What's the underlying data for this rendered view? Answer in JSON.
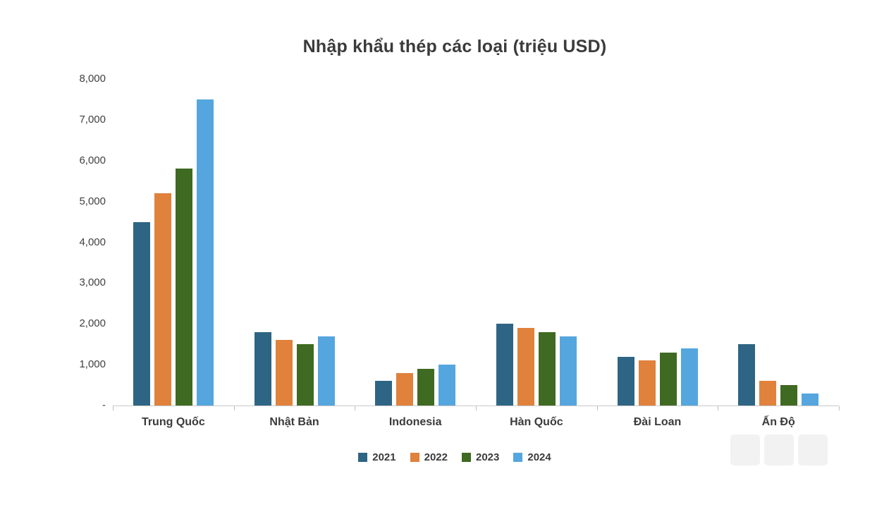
{
  "chart_data": {
    "type": "bar",
    "title": "Nhập khẩu thép các loại (triệu USD)",
    "categories": [
      "Trung Quốc",
      "Nhật Bản",
      "Indonesia",
      "Hàn Quốc",
      "Đài Loan",
      "Ấn Độ"
    ],
    "series": [
      {
        "name": "2021",
        "color": "#2E6584",
        "values": [
          4500,
          1800,
          600,
          2000,
          1200,
          1500
        ]
      },
      {
        "name": "2022",
        "color": "#E0813C",
        "values": [
          5200,
          1600,
          800,
          1900,
          1100,
          600
        ]
      },
      {
        "name": "2023",
        "color": "#3F6A21",
        "values": [
          5800,
          1500,
          900,
          1800,
          1300,
          500
        ]
      },
      {
        "name": "2024",
        "color": "#55A6DE",
        "values": [
          7500,
          1700,
          1000,
          1700,
          1400,
          300
        ]
      }
    ],
    "xlabel": "",
    "ylabel": "",
    "ylim": [
      0,
      8000
    ],
    "grid": false,
    "legend_position": "bottom",
    "y_ticks": [
      {
        "value": 0,
        "label": "-"
      },
      {
        "value": 1000,
        "label": "1,000"
      },
      {
        "value": 2000,
        "label": "2,000"
      },
      {
        "value": 3000,
        "label": "3,000"
      },
      {
        "value": 4000,
        "label": "4,000"
      },
      {
        "value": 5000,
        "label": "5,000"
      },
      {
        "value": 6000,
        "label": "6,000"
      },
      {
        "value": 7000,
        "label": "7,000"
      },
      {
        "value": 8000,
        "label": "8,000"
      }
    ]
  }
}
